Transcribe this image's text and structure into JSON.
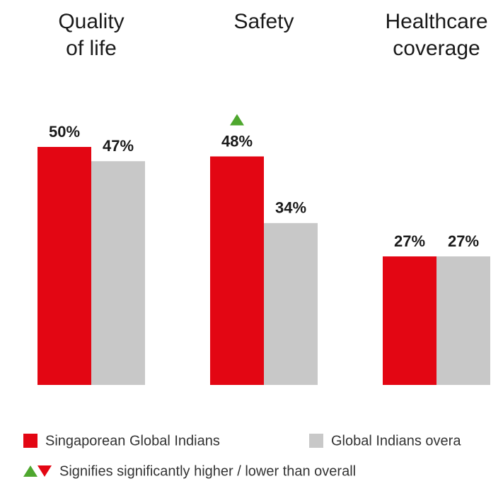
{
  "chart_data": {
    "type": "bar",
    "categories": [
      [
        "Quality",
        "of life"
      ],
      [
        "Safety"
      ],
      [
        "Healthcare",
        "coverage"
      ]
    ],
    "series": [
      {
        "name": "Singaporean Global Indians",
        "color": "#e30613",
        "values": [
          50,
          48,
          27
        ],
        "value_labels": [
          "50%",
          "48%",
          "27%"
        ]
      },
      {
        "name": "Global Indians overa",
        "color": "#c8c8c8",
        "values": [
          47,
          34,
          27
        ],
        "value_labels": [
          "47%",
          "34%",
          "27%"
        ]
      }
    ],
    "markers": [
      {
        "series": 0,
        "index": 1,
        "direction": "up",
        "color": "#4ea72e"
      }
    ],
    "note": {
      "up_color": "#4ea72e",
      "down_color": "#e30613",
      "text": "Signifies significantly higher / lower than overall"
    }
  }
}
